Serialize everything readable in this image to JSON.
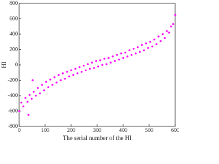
{
  "chart_data": {
    "type": "scatter",
    "xlabel": "The serial number of the HI",
    "ylabel": "HI",
    "xlim": [
      0,
      600
    ],
    "xticks": [
      0,
      100,
      200,
      300,
      400,
      500,
      600
    ],
    "ylim": [
      -800,
      800
    ],
    "yticks": [
      -800,
      -600,
      -400,
      -200,
      0,
      200,
      400,
      600,
      800
    ],
    "color": "#ff00ff",
    "x": [
      0,
      8,
      16,
      24,
      32,
      40,
      48,
      56,
      64,
      72,
      80,
      88,
      96,
      104,
      112,
      120,
      128,
      136,
      144,
      152,
      160,
      168,
      176,
      184,
      192,
      200,
      208,
      216,
      224,
      232,
      240,
      248,
      256,
      264,
      272,
      280,
      288,
      296,
      304,
      312,
      320,
      328,
      336,
      344,
      352,
      360,
      368,
      376,
      384,
      392,
      400,
      408,
      416,
      424,
      432,
      440,
      448,
      456,
      464,
      472,
      480,
      488,
      496,
      504,
      512,
      520,
      528,
      536,
      544,
      552,
      560,
      568,
      576,
      584,
      592,
      600,
      52,
      36
    ],
    "y": [
      -600,
      -490,
      -540,
      -430,
      -480,
      -390,
      -440,
      -350,
      -400,
      -300,
      -370,
      -260,
      -330,
      -220,
      -290,
      -190,
      -260,
      -160,
      -230,
      -130,
      -200,
      -110,
      -180,
      -90,
      -150,
      -70,
      -130,
      -50,
      -110,
      -30,
      -90,
      -10,
      -70,
      10,
      -50,
      30,
      -40,
      50,
      -20,
      60,
      0,
      80,
      10,
      90,
      30,
      110,
      50,
      130,
      70,
      150,
      90,
      160,
      110,
      190,
      130,
      210,
      150,
      230,
      170,
      260,
      190,
      280,
      220,
      300,
      240,
      330,
      270,
      370,
      310,
      400,
      350,
      440,
      420,
      500,
      530,
      650,
      -200,
      -650
    ]
  }
}
